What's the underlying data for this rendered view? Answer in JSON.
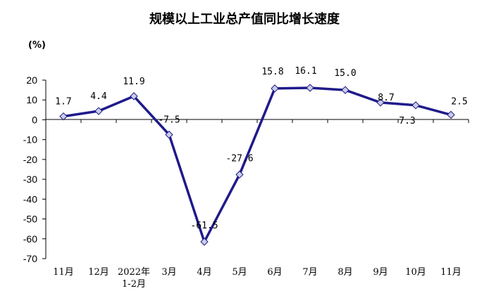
{
  "chart_data": {
    "type": "line",
    "title": "规模以上工业总产值同比增长速度",
    "ylabel": "(%)",
    "xlabel": "",
    "categories": [
      "11月",
      "12月",
      "2022年\n1-2月",
      "3月",
      "4月",
      "5月",
      "6月",
      "7月",
      "8月",
      "9月",
      "10月",
      "11月"
    ],
    "series": [
      {
        "values": [
          1.7,
          4.4,
          11.9,
          -7.5,
          -61.5,
          -27.6,
          15.8,
          16.1,
          15.0,
          8.7,
          7.3,
          2.5
        ],
        "labels": [
          "1.7",
          "4.4",
          "11.9",
          "-7.5",
          "-61.5",
          "-27.6",
          "15.8",
          "16.1",
          "15.0",
          "8.7",
          "7.3",
          "2.5"
        ],
        "color": "#1f1a8a"
      }
    ],
    "ylim": [
      -70,
      20
    ],
    "yticks": [
      20,
      10,
      0,
      -10,
      -20,
      -30,
      -40,
      -50,
      -60,
      -70
    ],
    "grid": false,
    "legend": "none"
  }
}
